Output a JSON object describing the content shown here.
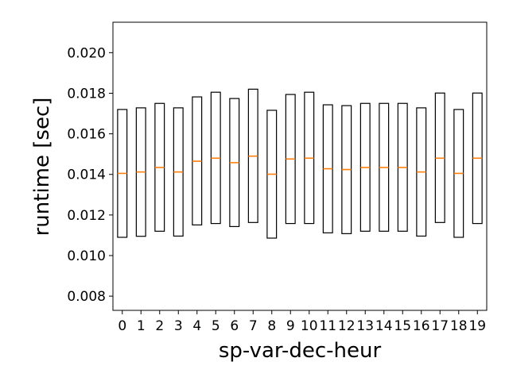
{
  "chart_data": {
    "type": "box",
    "title": "",
    "xlabel": "sp-var-dec-heur",
    "ylabel": "runtime [sec]",
    "ylim": [
      0.0073,
      0.0215
    ],
    "yticks": [
      "0.008",
      "0.010",
      "0.012",
      "0.014",
      "0.016",
      "0.018",
      "0.020"
    ],
    "ytick_values": [
      0.008,
      0.01,
      0.012,
      0.014,
      0.016,
      0.018,
      0.02
    ],
    "categories": [
      "0",
      "1",
      "2",
      "3",
      "4",
      "5",
      "6",
      "7",
      "8",
      "9",
      "10",
      "11",
      "12",
      "13",
      "14",
      "15",
      "16",
      "17",
      "18",
      "19"
    ],
    "highlight_category": "8",
    "highlight_color": "#ff0000",
    "box_color": "#000000",
    "median_color": "#ff7f0e",
    "grid": false,
    "boxes": [
      {
        "q1": 0.0109,
        "median": 0.01405,
        "q3": 0.0172
      },
      {
        "q1": 0.01095,
        "median": 0.01412,
        "q3": 0.01728
      },
      {
        "q1": 0.0112,
        "median": 0.01434,
        "q3": 0.0175
      },
      {
        "q1": 0.01096,
        "median": 0.01412,
        "q3": 0.01728
      },
      {
        "q1": 0.01151,
        "median": 0.01465,
        "q3": 0.01782
      },
      {
        "q1": 0.01158,
        "median": 0.0148,
        "q3": 0.01805
      },
      {
        "q1": 0.01143,
        "median": 0.01458,
        "q3": 0.01774
      },
      {
        "q1": 0.01163,
        "median": 0.0149,
        "q3": 0.0182
      },
      {
        "q1": 0.01086,
        "median": 0.01401,
        "q3": 0.01716
      },
      {
        "q1": 0.01158,
        "median": 0.01476,
        "q3": 0.01794
      },
      {
        "q1": 0.01158,
        "median": 0.0148,
        "q3": 0.01805
      },
      {
        "q1": 0.01112,
        "median": 0.01428,
        "q3": 0.01743
      },
      {
        "q1": 0.01108,
        "median": 0.01424,
        "q3": 0.01739
      },
      {
        "q1": 0.0112,
        "median": 0.01434,
        "q3": 0.0175
      },
      {
        "q1": 0.0112,
        "median": 0.01434,
        "q3": 0.0175
      },
      {
        "q1": 0.0112,
        "median": 0.01434,
        "q3": 0.0175
      },
      {
        "q1": 0.01096,
        "median": 0.01412,
        "q3": 0.01728
      },
      {
        "q1": 0.01163,
        "median": 0.0148,
        "q3": 0.01801
      },
      {
        "q1": 0.0109,
        "median": 0.01405,
        "q3": 0.0172
      },
      {
        "q1": 0.01158,
        "median": 0.0148,
        "q3": 0.01801
      }
    ]
  }
}
